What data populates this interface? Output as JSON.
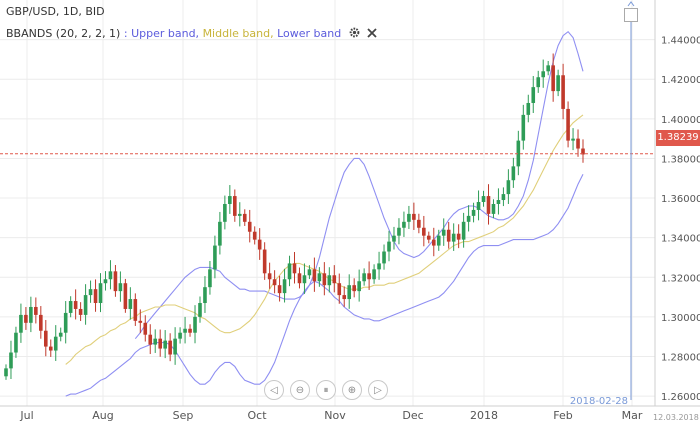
{
  "header": {
    "symbol_line": "GBP/USD, 1D, BID",
    "indicator_name": "BBANDS (20, 2, 2, 1)",
    "separator": ":",
    "upper_label": "Upper band,",
    "middle_label": "Middle band,",
    "lower_label": "Lower band"
  },
  "icons": {
    "settings": "gear-icon",
    "close": "close-icon",
    "expand": "expand-icon"
  },
  "navigation": {
    "labels": [
      "◁",
      "⊖",
      "⏸",
      "⊕",
      "▷"
    ]
  },
  "date_flag": "2018-02-28",
  "footer_date": "12.03.2018",
  "current_price": "1.38239",
  "colors": {
    "up_candle": "#2e9c57",
    "down_candle": "#c0392b",
    "bands": "#8f8ff2",
    "middle": "#e0cf7a",
    "price_line": "#e0584c"
  },
  "chart_data": {
    "type": "candlestick",
    "x_labels": [
      "Jul",
      "Aug",
      "Sep",
      "Oct",
      "Nov",
      "Dec",
      "2018",
      "Feb",
      "Mar"
    ],
    "y_ticks": [
      "1.26000",
      "1.28000",
      "1.30000",
      "1.32000",
      "1.34000",
      "1.36000",
      "1.38000",
      "1.40000",
      "1.42000",
      "1.44000"
    ],
    "ylim": [
      1.255,
      1.46
    ],
    "close": [
      1.274,
      1.282,
      1.292,
      1.301,
      1.297,
      1.305,
      1.301,
      1.293,
      1.285,
      1.283,
      1.29,
      1.292,
      1.302,
      1.308,
      1.304,
      1.301,
      1.311,
      1.314,
      1.307,
      1.317,
      1.319,
      1.323,
      1.313,
      1.317,
      1.304,
      1.309,
      1.298,
      1.297,
      1.291,
      1.286,
      1.289,
      1.284,
      1.288,
      1.281,
      1.289,
      1.292,
      1.294,
      1.292,
      1.3,
      1.307,
      1.315,
      1.324,
      1.336,
      1.348,
      1.357,
      1.361,
      1.351,
      1.352,
      1.348,
      1.343,
      1.339,
      1.334,
      1.322,
      1.319,
      1.316,
      1.312,
      1.319,
      1.327,
      1.322,
      1.317,
      1.321,
      1.324,
      1.318,
      1.322,
      1.316,
      1.321,
      1.317,
      1.311,
      1.309,
      1.316,
      1.313,
      1.318,
      1.322,
      1.319,
      1.324,
      1.327,
      1.333,
      1.338,
      1.341,
      1.345,
      1.348,
      1.352,
      1.349,
      1.345,
      1.341,
      1.339,
      1.336,
      1.341,
      1.344,
      1.338,
      1.342,
      1.339,
      1.348,
      1.351,
      1.354,
      1.358,
      1.361,
      1.352,
      1.357,
      1.359,
      1.362,
      1.369,
      1.376,
      1.389,
      1.402,
      1.408,
      1.416,
      1.421,
      1.424,
      1.427,
      1.414,
      1.422,
      1.405,
      1.389,
      1.39,
      1.385,
      1.382
    ],
    "middle_band": [
      1.276,
      1.278,
      1.281,
      1.283,
      1.285,
      1.286,
      1.288,
      1.29,
      1.291,
      1.293,
      1.294,
      1.296,
      1.297,
      1.299,
      1.3,
      1.302,
      1.303,
      1.304,
      1.305,
      1.305,
      1.306,
      1.306,
      1.306,
      1.305,
      1.304,
      1.303,
      1.302,
      1.3,
      1.299,
      1.297,
      1.295,
      1.293,
      1.292,
      1.292,
      1.293,
      1.294,
      1.296,
      1.298,
      1.301,
      1.305,
      1.309,
      1.314,
      1.318,
      1.321,
      1.324,
      1.326,
      1.327,
      1.327,
      1.326,
      1.325,
      1.324,
      1.323,
      1.321,
      1.319,
      1.318,
      1.316,
      1.315,
      1.314,
      1.314,
      1.314,
      1.315,
      1.315,
      1.316,
      1.316,
      1.316,
      1.317,
      1.317,
      1.318,
      1.319,
      1.32,
      1.321,
      1.322,
      1.324,
      1.326,
      1.328,
      1.33,
      1.332,
      1.334,
      1.336,
      1.337,
      1.338,
      1.338,
      1.339,
      1.34,
      1.341,
      1.342,
      1.343,
      1.345,
      1.346,
      1.348,
      1.35,
      1.353,
      1.356,
      1.36,
      1.364,
      1.369,
      1.374,
      1.379,
      1.384,
      1.388,
      1.392,
      1.395,
      1.398,
      1.4,
      1.402
    ],
    "upper_band": [
      1.289,
      1.292,
      1.296,
      1.299,
      1.302,
      1.305,
      1.308,
      1.311,
      1.314,
      1.317,
      1.32,
      1.322,
      1.324,
      1.325,
      1.325,
      1.325,
      1.324,
      1.323,
      1.32,
      1.318,
      1.316,
      1.314,
      1.314,
      1.313,
      1.313,
      1.313,
      1.313,
      1.312,
      1.311,
      1.31,
      1.309,
      1.309,
      1.309,
      1.31,
      1.312,
      1.316,
      1.322,
      1.33,
      1.34,
      1.35,
      1.358,
      1.366,
      1.373,
      1.377,
      1.38,
      1.38,
      1.377,
      1.371,
      1.364,
      1.357,
      1.35,
      1.344,
      1.338,
      1.334,
      1.332,
      1.331,
      1.33,
      1.331,
      1.333,
      1.336,
      1.339,
      1.342,
      1.345,
      1.349,
      1.352,
      1.354,
      1.355,
      1.356,
      1.356,
      1.355,
      1.353,
      1.351,
      1.35,
      1.349,
      1.349,
      1.35,
      1.352,
      1.356,
      1.361,
      1.369,
      1.379,
      1.392,
      1.405,
      1.418,
      1.429,
      1.437,
      1.442,
      1.444,
      1.441,
      1.433,
      1.424
    ],
    "lower_band": [
      1.26,
      1.261,
      1.261,
      1.262,
      1.263,
      1.264,
      1.266,
      1.268,
      1.269,
      1.271,
      1.273,
      1.275,
      1.277,
      1.279,
      1.282,
      1.284,
      1.285,
      1.286,
      1.287,
      1.287,
      1.287,
      1.286,
      1.283,
      1.279,
      1.275,
      1.271,
      1.268,
      1.266,
      1.266,
      1.268,
      1.272,
      1.275,
      1.277,
      1.277,
      1.275,
      1.271,
      1.268,
      1.267,
      1.266,
      1.266,
      1.268,
      1.272,
      1.277,
      1.284,
      1.291,
      1.298,
      1.304,
      1.309,
      1.313,
      1.316,
      1.318,
      1.317,
      1.315,
      1.313,
      1.31,
      1.308,
      1.305,
      1.303,
      1.301,
      1.3,
      1.299,
      1.299,
      1.298,
      1.298,
      1.299,
      1.3,
      1.301,
      1.302,
      1.303,
      1.304,
      1.305,
      1.306,
      1.307,
      1.308,
      1.309,
      1.31,
      1.312,
      1.315,
      1.318,
      1.322,
      1.326,
      1.33,
      1.333,
      1.335,
      1.336,
      1.336,
      1.336,
      1.336,
      1.337,
      1.338,
      1.339,
      1.339,
      1.339,
      1.339,
      1.339,
      1.34,
      1.341,
      1.342,
      1.344,
      1.347,
      1.351,
      1.355,
      1.361,
      1.367,
      1.372
    ]
  }
}
